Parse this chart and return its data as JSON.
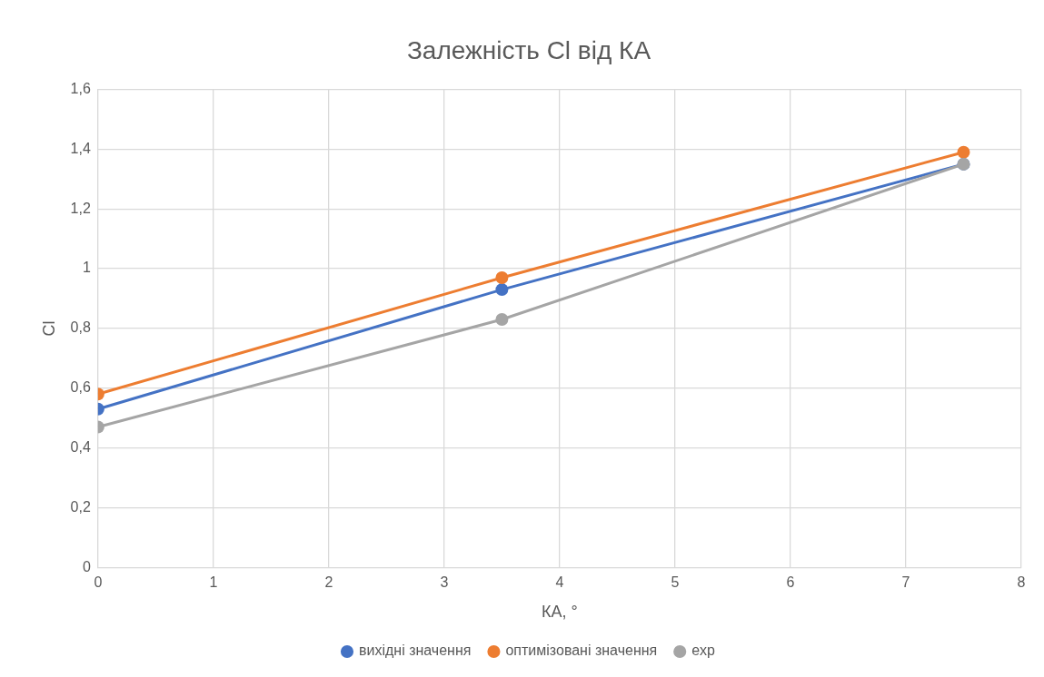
{
  "chart_data": {
    "type": "line",
    "title": "Залежність Cl від КА",
    "xlabel": "КА, °",
    "ylabel": "Cl",
    "x": [
      0,
      3.5,
      7.5
    ],
    "series": [
      {
        "name": "вихідні значення",
        "color": "#4472c4",
        "values": [
          0.53,
          0.93,
          1.35
        ]
      },
      {
        "name": "оптимізовані значення",
        "color": "#ed7d31",
        "values": [
          0.58,
          0.97,
          1.39
        ]
      },
      {
        "name": "exp",
        "color": "#a5a5a5",
        "values": [
          0.47,
          0.83,
          1.35
        ]
      }
    ],
    "xlim": [
      0,
      8
    ],
    "xticks": [
      0,
      1,
      2,
      3,
      4,
      5,
      6,
      7,
      8
    ],
    "ylim": [
      0,
      1.6
    ],
    "yticks": [
      0,
      {
        "value": 0.2,
        "label": "0,2"
      },
      {
        "value": 0.4,
        "label": "0,4"
      },
      {
        "value": 0.6,
        "label": "0,6"
      },
      {
        "value": 0.8,
        "label": "0,8"
      },
      1,
      {
        "value": 1.2,
        "label": "1,2"
      },
      {
        "value": 1.4,
        "label": "1,4"
      },
      {
        "value": 1.6,
        "label": "1,6"
      }
    ],
    "grid": true,
    "legend": "bottom",
    "marker": "circle",
    "line_style": "solid"
  }
}
